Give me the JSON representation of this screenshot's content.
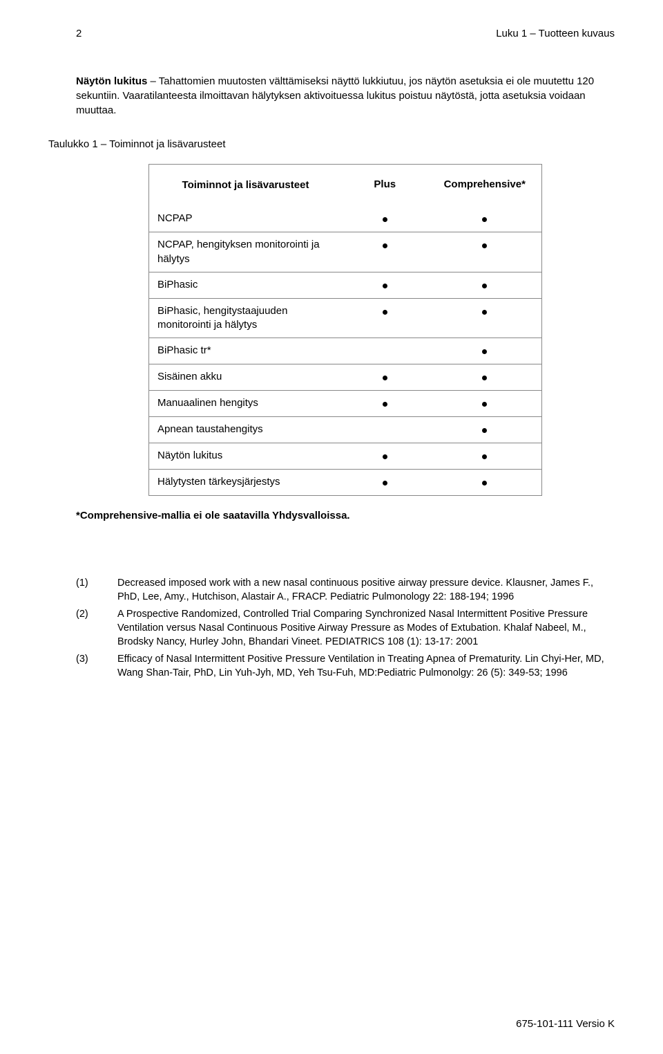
{
  "header": {
    "page_number": "2",
    "chapter": "Luku 1 – Tuotteen kuvaus"
  },
  "intro": {
    "lead_bold": "Näytön lukitus",
    "rest": " – Tahattomien muutosten välttämiseksi näyttö lukkiutuu, jos näytön asetuksia ei ole muutettu 120 sekuntiin. Vaaratilanteesta ilmoittavan hälytyksen aktivoituessa lukitus poistuu näytöstä, jotta asetuksia voidaan muuttaa."
  },
  "table": {
    "caption": "Taulukko 1 – Toiminnot ja lisävarusteet",
    "header_label": "Toiminnot ja lisävarusteet",
    "header_plus": "Plus",
    "header_comp": "Comprehensive*",
    "rows": [
      {
        "label": "NCPAP",
        "plus": true,
        "comp": true
      },
      {
        "label": "NCPAP, hengityksen monitorointi ja hälytys",
        "plus": true,
        "comp": true
      },
      {
        "label": "BiPhasic",
        "plus": true,
        "comp": true
      },
      {
        "label": "BiPhasic, hengitystaajuuden monitorointi ja hälytys",
        "plus": true,
        "comp": true
      },
      {
        "label": "BiPhasic tr*",
        "plus": false,
        "comp": true
      },
      {
        "label": "Sisäinen akku",
        "plus": true,
        "comp": true
      },
      {
        "label": "Manuaalinen hengitys",
        "plus": true,
        "comp": true
      },
      {
        "label": "Apnean taustahengitys",
        "plus": false,
        "comp": true
      },
      {
        "label": "Näytön lukitus",
        "plus": true,
        "comp": true
      },
      {
        "label": "Hälytysten tärkeysjärjestys",
        "plus": true,
        "comp": true
      }
    ],
    "footnote": "*Comprehensive-mallia ei ole saatavilla Yhdysvalloissa."
  },
  "references": [
    {
      "num": "(1)",
      "text": "Decreased imposed work with a new nasal continuous positive airway pressure device. Klausner, James F., PhD, Lee, Amy., Hutchison, Alastair A., FRACP. Pediatric Pulmonology 22: 188-194; 1996"
    },
    {
      "num": "(2)",
      "text": "A Prospective Randomized, Controlled Trial Comparing Synchronized Nasal Intermittent Positive Pressure Ventilation versus Nasal Continuous Positive Airway Pressure as Modes of Extubation. Khalaf Nabeel, M., Brodsky Nancy, Hurley John, Bhandari Vineet. PEDIATRICS 108 (1): 13-17: 2001"
    },
    {
      "num": "(3)",
      "text": "Efficacy of Nasal Intermittent Positive Pressure Ventilation in Treating Apnea of Prematurity. Lin Chyi-Her, MD, Wang Shan-Tair, PhD, Lin Yuh-Jyh, MD, Yeh Tsu-Fuh, MD:Pediatric Pulmonolgy: 26 (5): 349-53; 1996"
    }
  ],
  "footer": "675-101-111 Versio K"
}
